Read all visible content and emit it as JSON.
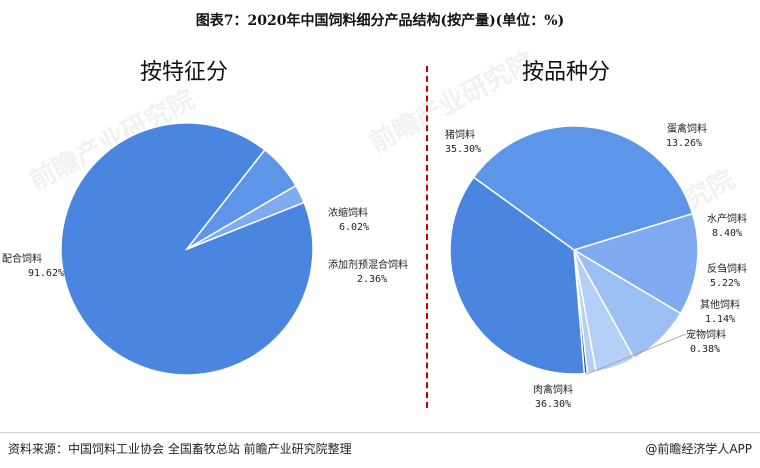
{
  "title": "图表7：2020年中国饲料细分产品结构(按产量)(单位：%)",
  "source": "资料来源：中国饲料工业协会 全国畜牧总站 前瞻产业研究院整理",
  "brand": "@前瞻经济学人APP",
  "watermark": "前瞻产业研究院",
  "colors": {
    "blue_dark": "#4a86e0",
    "blue_mid": "#5d95e8",
    "blue_soft": "#7eabf0",
    "blue_light": "#9dc0f4",
    "blue_pale": "#b5d0f7",
    "navy": "#2b4f86",
    "divider": "#c00000"
  },
  "chart_data": [
    {
      "type": "pie",
      "title": "按特征分",
      "slices": [
        {
          "label": "配合饲料",
          "value": 91.62,
          "display": "91.62%"
        },
        {
          "label": "浓缩饲料",
          "value": 6.02,
          "display": "6.02%"
        },
        {
          "label": "添加剂预混合饲料",
          "value": 2.36,
          "display": "2.36%"
        }
      ]
    },
    {
      "type": "pie",
      "title": "按品种分",
      "slices": [
        {
          "label": "猪饲料",
          "value": 35.3,
          "display": "35.30%"
        },
        {
          "label": "蛋禽饲料",
          "value": 13.26,
          "display": "13.26%"
        },
        {
          "label": "水产饲料",
          "value": 8.4,
          "display": "8.40%"
        },
        {
          "label": "反刍饲料",
          "value": 5.22,
          "display": "5.22%"
        },
        {
          "label": "其他饲料",
          "value": 1.14,
          "display": "1.14%"
        },
        {
          "label": "宠物饲料",
          "value": 0.38,
          "display": "0.38%"
        },
        {
          "label": "肉禽饲料",
          "value": 36.3,
          "display": "36.30%"
        }
      ]
    }
  ]
}
